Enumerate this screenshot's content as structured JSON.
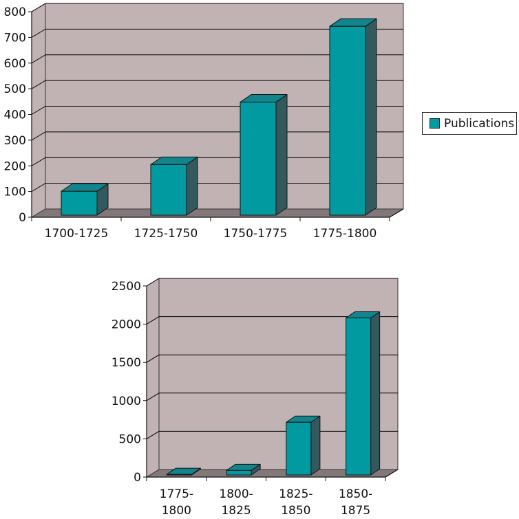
{
  "legend": {
    "label": "Publications"
  },
  "colors": {
    "bar_front": "#009aa0",
    "bar_side": "#325a5e",
    "bar_top": "#12858c",
    "wall": "#c1b3b4",
    "floor": "#837879",
    "grid": "#000000"
  },
  "chart_data": [
    {
      "type": "bar",
      "categories": [
        "1700-1725",
        "1725-1750",
        "1750-1775",
        "1775-1800"
      ],
      "series": [
        {
          "name": "Publications",
          "values": [
            93,
            197,
            440,
            735
          ]
        }
      ],
      "ylim": [
        0,
        800
      ],
      "yticks": [
        "0",
        "100",
        "200",
        "300",
        "400",
        "500",
        "600",
        "700",
        "800"
      ],
      "grid": true,
      "legend": "right"
    },
    {
      "type": "bar",
      "categories": [
        [
          "1775-",
          "1800"
        ],
        [
          "1800-",
          "1825"
        ],
        [
          "1825-",
          "1850"
        ],
        [
          "1850-",
          "1875"
        ]
      ],
      "series": [
        {
          "name": "Publications",
          "values": [
            8,
            60,
            690,
            2055
          ]
        }
      ],
      "ylim": [
        0,
        2500
      ],
      "yticks": [
        "0",
        "500",
        "1000",
        "1500",
        "2000",
        "2500"
      ],
      "grid": true
    }
  ]
}
